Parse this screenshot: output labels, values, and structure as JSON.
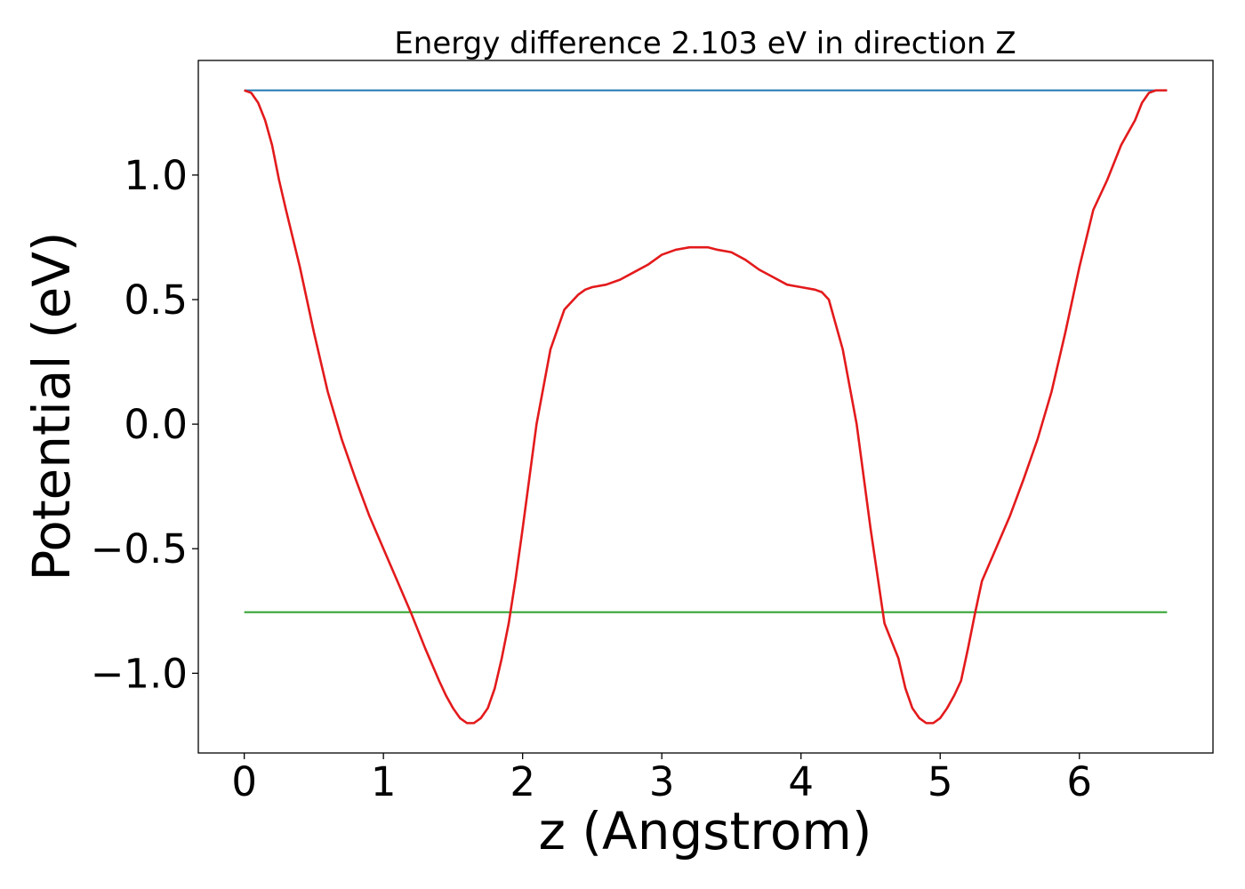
{
  "chart_data": {
    "type": "line",
    "title": "Energy difference 2.103 eV in direction Z",
    "xlabel": "z (Angstrom)",
    "ylabel": "Potential (eV)",
    "xlim": [
      -0.33,
      6.96
    ],
    "ylim": [
      -1.32,
      1.46
    ],
    "xticks": [
      0,
      1,
      2,
      3,
      4,
      5,
      6
    ],
    "xtick_labels": [
      "0",
      "1",
      "2",
      "3",
      "4",
      "5",
      "6"
    ],
    "yticks": [
      -1.0,
      -0.5,
      0.0,
      0.5,
      1.0
    ],
    "ytick_labels": [
      "−1.0",
      "−0.5",
      "0.0",
      "0.5",
      "1.0"
    ],
    "grid": false,
    "series": [
      {
        "color": "#1f77b4",
        "x": [
          0.0,
          6.63
        ],
        "y": [
          1.34,
          1.34
        ]
      },
      {
        "color": "#2ca02c",
        "x": [
          0.0,
          6.63
        ],
        "y": [
          -0.755,
          -0.755
        ]
      },
      {
        "color": "#e31a1c",
        "x": [
          0.0,
          0.05,
          0.1,
          0.15,
          0.2,
          0.25,
          0.3,
          0.4,
          0.5,
          0.6,
          0.7,
          0.8,
          0.9,
          1.0,
          1.1,
          1.2,
          1.3,
          1.4,
          1.45,
          1.5,
          1.55,
          1.6,
          1.65,
          1.7,
          1.75,
          1.8,
          1.85,
          1.9,
          1.95,
          2.0,
          2.1,
          2.2,
          2.3,
          2.4,
          2.45,
          2.5,
          2.6,
          2.7,
          2.8,
          2.9,
          3.0,
          3.1,
          3.2,
          3.3,
          3.33,
          3.4,
          3.5,
          3.6,
          3.7,
          3.8,
          3.9,
          4.0,
          4.1,
          4.15,
          4.2,
          4.3,
          4.4,
          4.5,
          4.6,
          4.7,
          4.75,
          4.8,
          4.85,
          4.9,
          4.95,
          5.0,
          5.05,
          5.1,
          5.15,
          5.2,
          5.25,
          5.3,
          5.4,
          5.5,
          5.6,
          5.7,
          5.8,
          5.9,
          6.0,
          6.1,
          6.2,
          6.3,
          6.4,
          6.45,
          6.5,
          6.55,
          6.6,
          6.63
        ],
        "y": [
          1.34,
          1.33,
          1.29,
          1.22,
          1.12,
          0.98,
          0.86,
          0.63,
          0.37,
          0.13,
          -0.06,
          -0.22,
          -0.37,
          -0.5,
          -0.63,
          -0.76,
          -0.9,
          -1.03,
          -1.09,
          -1.14,
          -1.18,
          -1.2,
          -1.2,
          -1.18,
          -1.14,
          -1.06,
          -0.94,
          -0.8,
          -0.62,
          -0.42,
          0.0,
          0.3,
          0.46,
          0.52,
          0.54,
          0.55,
          0.56,
          0.58,
          0.61,
          0.64,
          0.68,
          0.7,
          0.71,
          0.71,
          0.71,
          0.7,
          0.69,
          0.66,
          0.62,
          0.59,
          0.56,
          0.55,
          0.54,
          0.53,
          0.5,
          0.3,
          0.0,
          -0.42,
          -0.8,
          -0.94,
          -1.06,
          -1.14,
          -1.18,
          -1.2,
          -1.2,
          -1.18,
          -1.14,
          -1.09,
          -1.03,
          -0.9,
          -0.76,
          -0.63,
          -0.5,
          -0.37,
          -0.22,
          -0.06,
          0.13,
          0.37,
          0.63,
          0.86,
          0.98,
          1.12,
          1.22,
          1.29,
          1.33,
          1.34,
          1.34,
          1.34
        ]
      }
    ]
  }
}
